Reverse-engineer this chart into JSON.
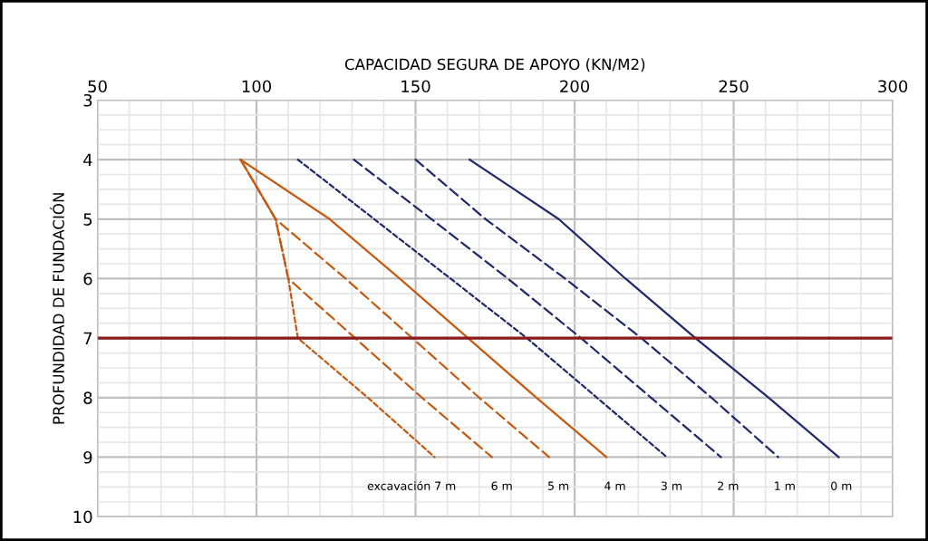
{
  "chart_data": {
    "type": "line",
    "xlabel": "CAPACIDAD SEGURA DE APOYO (KN/M2)",
    "ylabel": "PROFUNDIDAD DE FUNDACIÓN",
    "xlim": [
      50,
      300
    ],
    "xticks": [
      50,
      100,
      150,
      200,
      250,
      300
    ],
    "ylim": [
      10,
      3
    ],
    "yticks": [
      3,
      4,
      5,
      6,
      7,
      8,
      9,
      10
    ],
    "grid": true,
    "marker": "none",
    "series": [
      {
        "color": "#1f2a6b",
        "line_style": "solid",
        "x": [
          167,
          181,
          195,
          216,
          238,
          261,
          283
        ],
        "values": [
          4,
          4.5,
          5,
          6,
          7,
          8,
          9
        ]
      },
      {
        "color": "#1f2a6b",
        "line_style": "dashed",
        "x": [
          150,
          172,
          197,
          221,
          243,
          264
        ],
        "values": [
          4,
          5,
          6,
          7,
          8,
          9
        ]
      },
      {
        "color": "#1f2a6b",
        "line_style": "dashed",
        "x": [
          130.6,
          155,
          179,
          202,
          224,
          246
        ],
        "values": [
          4,
          5,
          6,
          7,
          8,
          9
        ]
      },
      {
        "color": "#1f2a6b",
        "line_style": "dotted",
        "x": [
          113,
          137,
          161,
          185,
          207,
          229
        ],
        "values": [
          4,
          5,
          6,
          7,
          8,
          9
        ]
      },
      {
        "color": "#c55a11",
        "line_style": "solid",
        "x": [
          95,
          123,
          145,
          166.5,
          188,
          210
        ],
        "values": [
          4,
          5,
          6,
          7,
          8,
          9
        ]
      },
      {
        "color": "#c55a11",
        "line_style": "dashed",
        "x": [
          95,
          106,
          128,
          149,
          170,
          192
        ],
        "values": [
          4,
          5,
          6,
          7,
          8,
          9
        ]
      },
      {
        "color": "#c55a11",
        "line_style": "dashed",
        "x": [
          95,
          106,
          110,
          131,
          152,
          174
        ],
        "values": [
          4,
          5,
          6,
          7,
          8,
          9
        ]
      },
      {
        "color": "#c55a11",
        "line_style": "dotted",
        "x": [
          95,
          106,
          110,
          113,
          135,
          156
        ],
        "values": [
          4,
          5,
          6,
          7,
          8,
          9
        ]
      }
    ],
    "ref_lines": [
      {
        "axis": "y",
        "value": 7,
        "color": "#8b1a1a"
      }
    ],
    "annotations": [
      "excavación 7 m",
      "6 m",
      "5 m",
      "4 m",
      "3 m",
      "2 m",
      "1 m",
      "0 m"
    ]
  }
}
